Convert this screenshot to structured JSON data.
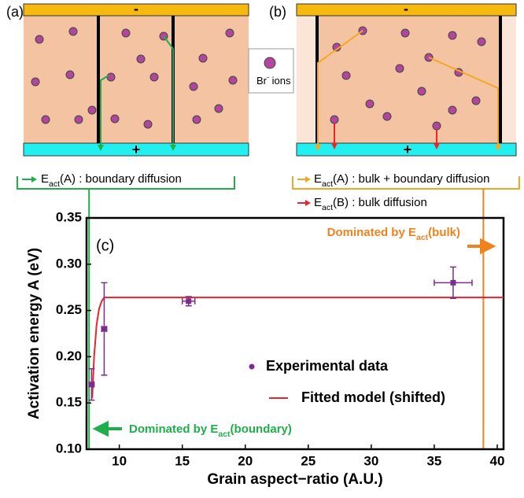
{
  "schematic": {
    "panel_a_label": "(a)",
    "panel_b_label": "(b)",
    "minus_a": "-",
    "minus_b": "-",
    "plus_a": "+",
    "plus_b": "+",
    "ion_legend": {
      "parts": [
        "Br",
        "-",
        " ions"
      ]
    },
    "legend_a": {
      "parts": [
        "E",
        "act",
        "(A) : boundary diffusion"
      ]
    },
    "legend_b1": {
      "parts": [
        "E",
        "act",
        "(A) : bulk + boundary diffusion"
      ]
    },
    "legend_b2": {
      "parts": [
        "E",
        "act",
        "(B) : bulk diffusion"
      ]
    }
  },
  "chart_data": {
    "type": "scatter",
    "xlabel": "Grain aspect−ratio (A.U.)",
    "ylabel": "Activation energy A (eV)",
    "panel_label": "(c)",
    "xlim": [
      7.4,
      40.5
    ],
    "ylim": [
      0.1,
      0.35
    ],
    "xticks": [
      10,
      15,
      20,
      25,
      30,
      35,
      40
    ],
    "yticks": [
      {
        "value": 0.1,
        "label": "0.10"
      },
      0.15,
      {
        "value": 0.2,
        "label": "0.20"
      },
      0.25,
      {
        "value": 0.3,
        "label": "0.30"
      },
      0.35
    ],
    "series": [
      {
        "name": "Experimental data",
        "color": "#7b2d8e",
        "x": [
          7.8,
          8.8,
          15.5,
          36.5
        ],
        "values": [
          0.17,
          0.23,
          0.26,
          0.28
        ],
        "yerr": [
          0.017,
          0.05,
          0.005,
          0.017
        ],
        "xerr": [
          0.2,
          0.2,
          0.5,
          1.5
        ]
      },
      {
        "name": "Fitted model (shifted)",
        "color": "#e8262b",
        "x": [
          7.85,
          8.0,
          8.2,
          8.4,
          8.6,
          8.8,
          40.5
        ],
        "values": [
          0.155,
          0.2,
          0.235,
          0.252,
          0.26,
          0.264,
          0.264
        ]
      }
    ],
    "annotations": [
      {
        "parts": [
          "Dominated by E",
          "act",
          "(bulk)"
        ],
        "color": "#f0821e",
        "x": 38.9
      },
      {
        "parts": [
          "Dominated by E",
          "act",
          "(boundary)"
        ],
        "color": "#1fae4a",
        "x": 7.6
      }
    ]
  }
}
